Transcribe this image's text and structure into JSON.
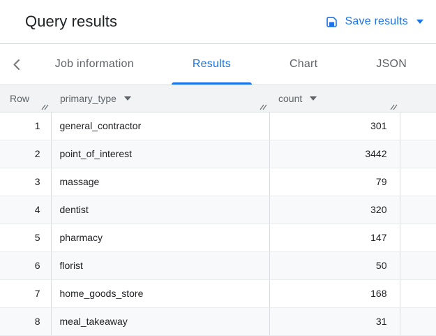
{
  "header": {
    "title": "Query results",
    "save_button": {
      "label": "Save results",
      "icon": "save-icon"
    }
  },
  "tabs": {
    "back_icon": "chevron-left-icon",
    "items": [
      {
        "label": "Job information",
        "active": false
      },
      {
        "label": "Results",
        "active": true
      },
      {
        "label": "Chart",
        "active": false
      },
      {
        "label": "JSON",
        "active": false
      }
    ]
  },
  "table": {
    "columns": [
      {
        "label": "Row",
        "has_menu": false
      },
      {
        "label": "primary_type",
        "has_menu": true
      },
      {
        "label": "count",
        "has_menu": true
      }
    ],
    "rows": [
      {
        "row": "1",
        "primary_type": "general_contractor",
        "count": "301"
      },
      {
        "row": "2",
        "primary_type": "point_of_interest",
        "count": "3442"
      },
      {
        "row": "3",
        "primary_type": "massage",
        "count": "79"
      },
      {
        "row": "4",
        "primary_type": "dentist",
        "count": "320"
      },
      {
        "row": "5",
        "primary_type": "pharmacy",
        "count": "147"
      },
      {
        "row": "6",
        "primary_type": "florist",
        "count": "50"
      },
      {
        "row": "7",
        "primary_type": "home_goods_store",
        "count": "168"
      },
      {
        "row": "8",
        "primary_type": "meal_takeaway",
        "count": "31"
      }
    ]
  },
  "colors": {
    "accent": "#1a73e8",
    "text_primary": "#202124",
    "text_secondary": "#5f6368",
    "header_bg": "#f1f3f4",
    "alt_row_bg": "#f8f9fa",
    "border": "#dadce0"
  }
}
